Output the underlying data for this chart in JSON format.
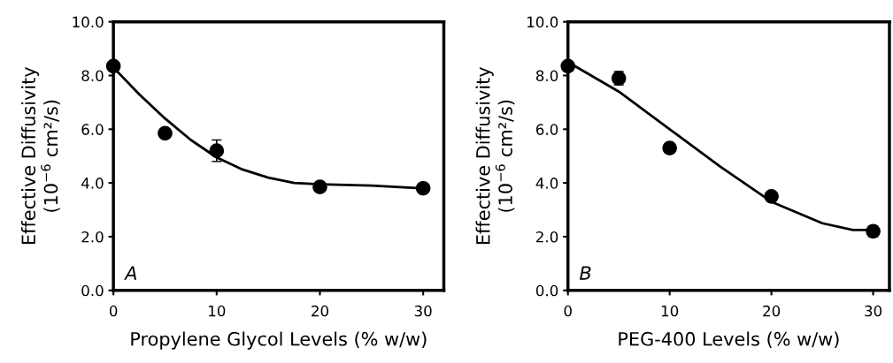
{
  "chart_data": [
    {
      "type": "scatter",
      "xlabel": "Propylene Glycol Levels (% w/w)",
      "ylabel": "Effective Diffusivity\n(10$^{−6}$ cm²/s)",
      "xlim": [
        0,
        32
      ],
      "xticks": [
        0,
        10,
        20,
        30
      ],
      "ylim": [
        0,
        10
      ],
      "yticks": [
        {
          "value": 0,
          "label": "0.0"
        },
        {
          "value": 2,
          "label": "2.0"
        },
        {
          "value": 4,
          "label": "4.0"
        },
        {
          "value": 6,
          "label": "6.0"
        },
        {
          "value": 8,
          "label": "8.0"
        },
        {
          "value": 10,
          "label": "10.0"
        }
      ],
      "annotations": [
        "A"
      ],
      "series": [
        {
          "color": "#000000",
          "marker": "circle",
          "x": [
            0,
            5,
            10,
            20,
            30
          ],
          "values": [
            8.35,
            5.85,
            5.2,
            3.85,
            3.8
          ],
          "errors": [
            0.1,
            0.1,
            0.4,
            0.1,
            0.15
          ]
        },
        {
          "type": "line",
          "marker": "none",
          "color": "#000000",
          "x": [
            0,
            2.5,
            5,
            7.5,
            10,
            12.5,
            15,
            17.5,
            20,
            25,
            30
          ],
          "values": [
            8.3,
            7.3,
            6.4,
            5.6,
            4.95,
            4.5,
            4.2,
            4.0,
            3.95,
            3.9,
            3.8
          ]
        }
      ]
    },
    {
      "type": "scatter",
      "xlabel": "PEG-400 Levels (% w/w)",
      "ylabel": "Effective Diffusivity\n(10$^{−6}$ cm²/s)",
      "xlim": [
        0,
        31.6
      ],
      "xticks": [
        0,
        10,
        20,
        30
      ],
      "ylim": [
        0,
        10
      ],
      "yticks": [
        {
          "value": 0,
          "label": "0.0"
        },
        {
          "value": 2,
          "label": "2.0"
        },
        {
          "value": 4,
          "label": "4.0"
        },
        {
          "value": 6,
          "label": "6.0"
        },
        {
          "value": 8,
          "label": "8.0"
        },
        {
          "value": 10,
          "label": "10.0"
        }
      ],
      "annotations": [
        "B"
      ],
      "series": [
        {
          "color": "#000000",
          "marker": "circle",
          "x": [
            0,
            5,
            10,
            20,
            30
          ],
          "values": [
            8.35,
            7.9,
            5.3,
            3.5,
            2.2
          ],
          "errors": [
            0.1,
            0.25,
            0.1,
            0.1,
            0.2
          ]
        },
        {
          "type": "line",
          "marker": "none",
          "color": "#000000",
          "x": [
            0,
            5,
            10,
            15,
            20,
            25,
            28,
            30
          ],
          "values": [
            8.5,
            7.4,
            6.0,
            4.6,
            3.3,
            2.5,
            2.25,
            2.25
          ]
        }
      ]
    }
  ]
}
